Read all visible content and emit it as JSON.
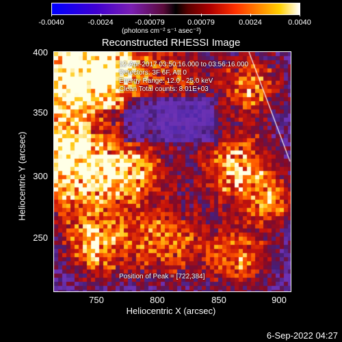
{
  "colorbar": {
    "ticks": [
      "-0.0040",
      "-0.0024",
      "-0.00079",
      "0.00079",
      "0.0024",
      "0.0040"
    ],
    "units": "(photons cm⁻² s⁻¹ asec⁻²)"
  },
  "title": "Reconstructed RHESSI Image",
  "info": {
    "line1": "12-Apr-2017 03:50:16.000 to 03:56:16.000",
    "line2": "Detectors: 3F 6F, Att 0",
    "line3": "Energy Range: 12.0 - 25.0 keV",
    "line4": "Clean     Total counts: 8.01E+03",
    "peak": "Position of Peak = [722,384]"
  },
  "axes": {
    "xlabel": "Heliocentric X (arcsec)",
    "ylabel": "Heliocentric Y (arcsec)",
    "xticks": [
      "750",
      "800",
      "850",
      "900"
    ],
    "yticks": [
      "400",
      "350",
      "300",
      "250"
    ]
  },
  "timestamp": "6-Sep-2022 04:27"
}
